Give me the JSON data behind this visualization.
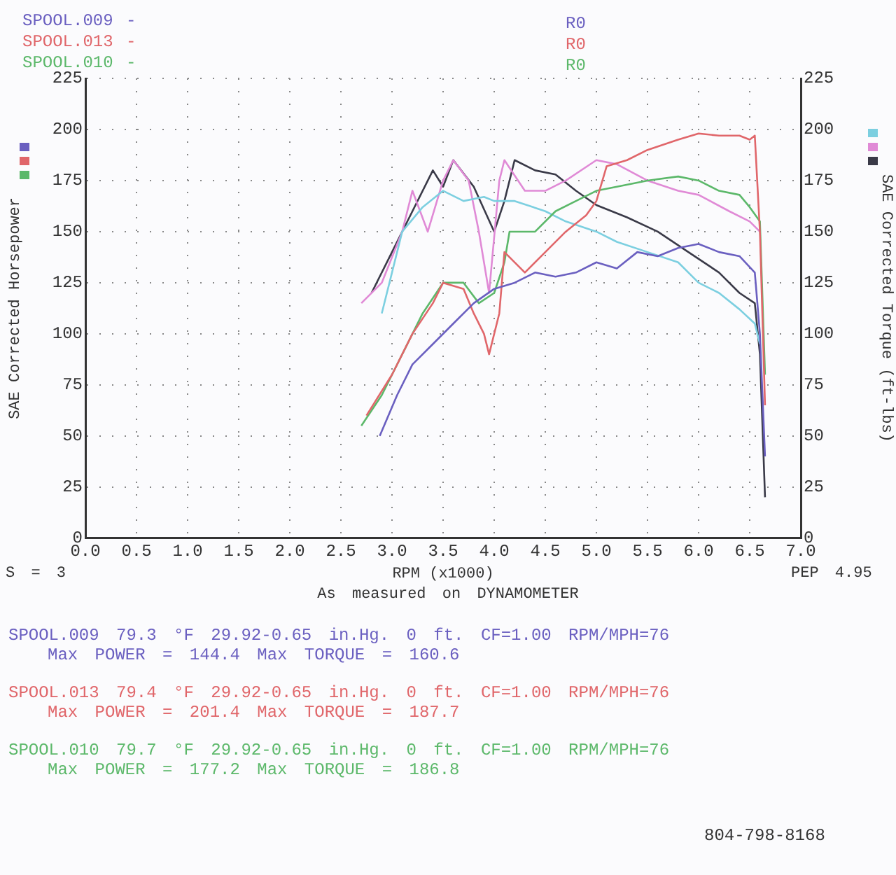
{
  "chart_data": {
    "type": "line",
    "xlabel": "RPM (x1000)",
    "ylabel": "SAE Corrected Horsepower",
    "y2label": "SAE Corrected Torque (ft-lbs)",
    "xlim": [
      0,
      7
    ],
    "xticks": [
      {
        "value": 0,
        "label": "0.0"
      },
      {
        "value": 0.5,
        "label": "0.5"
      },
      {
        "value": 1,
        "label": "1.0"
      },
      {
        "value": 1.5,
        "label": "1.5"
      },
      {
        "value": 2,
        "label": "2.0"
      },
      {
        "value": 2.5,
        "label": "2.5"
      },
      {
        "value": 3,
        "label": "3.0"
      },
      {
        "value": 3.5,
        "label": "3.5"
      },
      {
        "value": 4,
        "label": "4.0"
      },
      {
        "value": 4.5,
        "label": "4.5"
      },
      {
        "value": 5,
        "label": "5.0"
      },
      {
        "value": 5.5,
        "label": "5.5"
      },
      {
        "value": 6,
        "label": "6.0"
      },
      {
        "value": 6.5,
        "label": "6.5"
      },
      {
        "value": 7,
        "label": "7.0"
      }
    ],
    "ylim": [
      0,
      225
    ],
    "yticks": [
      0,
      25,
      50,
      75,
      100,
      125,
      150,
      175,
      200,
      225
    ],
    "y2lim": [
      0,
      225
    ],
    "y2ticks": [
      0,
      25,
      50,
      75,
      100,
      125,
      150,
      175,
      200,
      225
    ],
    "grid": true,
    "marker": "none",
    "line_style": "solid",
    "series": [
      {
        "name": "SPOOL.009 -",
        "color": "#6a5fc0",
        "x": [
          2.88,
          3.05,
          3.2,
          3.4,
          3.6,
          3.8,
          4.0,
          4.2,
          4.4,
          4.6,
          4.8,
          5.0,
          5.2,
          5.4,
          5.6,
          5.8,
          6.0,
          6.2,
          6.4,
          6.55,
          6.6,
          6.65
        ],
        "values": [
          50,
          70,
          85,
          95,
          105,
          115,
          122,
          125,
          130,
          128,
          130,
          135,
          132,
          140,
          138,
          142,
          144,
          140,
          138,
          130,
          100,
          40
        ]
      },
      {
        "name": "SPOOL.013 -",
        "color": "#e0666a",
        "x": [
          2.75,
          3.0,
          3.2,
          3.4,
          3.5,
          3.7,
          3.8,
          3.9,
          3.95,
          4.05,
          4.1,
          4.3,
          4.5,
          4.7,
          4.9,
          5.0,
          5.1,
          5.3,
          5.5,
          5.8,
          6.0,
          6.2,
          6.4,
          6.5,
          6.55,
          6.6,
          6.65
        ],
        "values": [
          60,
          80,
          100,
          115,
          125,
          122,
          110,
          100,
          90,
          110,
          140,
          130,
          140,
          150,
          158,
          165,
          182,
          185,
          190,
          195,
          198,
          197,
          197,
          195,
          197,
          150,
          65
        ]
      },
      {
        "name": "SPOOL.010 -",
        "color": "#5cb86a",
        "x": [
          2.7,
          2.9,
          3.1,
          3.3,
          3.5,
          3.7,
          3.85,
          4.0,
          4.1,
          4.15,
          4.4,
          4.6,
          4.8,
          5.0,
          5.2,
          5.5,
          5.8,
          6.0,
          6.2,
          6.4,
          6.5,
          6.6,
          6.65
        ],
        "values": [
          55,
          70,
          90,
          110,
          125,
          125,
          115,
          120,
          135,
          150,
          150,
          160,
          165,
          170,
          172,
          175,
          177,
          175,
          170,
          168,
          162,
          155,
          80
        ]
      },
      {
        "color": "#7ccfe0",
        "axis": "y2",
        "x": [
          2.9,
          3.0,
          3.1,
          3.3,
          3.5,
          3.7,
          3.9,
          4.0,
          4.2,
          4.5,
          4.7,
          5.0,
          5.2,
          5.5,
          5.8,
          6.0,
          6.2,
          6.4,
          6.55,
          6.6
        ],
        "values": [
          110,
          130,
          150,
          162,
          170,
          165,
          167,
          165,
          165,
          160,
          155,
          150,
          145,
          140,
          135,
          125,
          120,
          112,
          105,
          95
        ]
      },
      {
        "color": "#e08ad6",
        "axis": "y2",
        "x": [
          2.7,
          2.9,
          3.1,
          3.2,
          3.35,
          3.5,
          3.6,
          3.75,
          3.85,
          3.95,
          4.05,
          4.1,
          4.3,
          4.5,
          4.7,
          5.0,
          5.2,
          5.5,
          5.8,
          6.0,
          6.3,
          6.5,
          6.6
        ],
        "values": [
          115,
          125,
          150,
          170,
          150,
          175,
          185,
          175,
          150,
          120,
          175,
          185,
          170,
          170,
          175,
          185,
          183,
          175,
          170,
          168,
          160,
          155,
          150
        ]
      },
      {
        "color": "#3a3a48",
        "axis": "y2",
        "x": [
          2.8,
          3.0,
          3.2,
          3.4,
          3.5,
          3.6,
          3.8,
          4.0,
          4.1,
          4.2,
          4.4,
          4.6,
          4.8,
          5.0,
          5.3,
          5.6,
          5.9,
          6.2,
          6.4,
          6.55,
          6.6,
          6.65
        ],
        "values": [
          120,
          140,
          160,
          180,
          172,
          185,
          172,
          150,
          165,
          185,
          180,
          178,
          170,
          163,
          157,
          150,
          140,
          130,
          120,
          115,
          90,
          20
        ]
      }
    ],
    "annotations": [
      "R0",
      "R0",
      "R0",
      "S = 3",
      "PEP 4.95",
      "As measured on DYNAMOMETER",
      "SPOOL.009 79.3 °F 29.92-0.65 in.Hg. 0 ft. CF=1.00 RPM/MPH=76",
      "Max POWER = 144.4 Max TORQUE = 160.6",
      "SPOOL.013 79.4 °F 29.92-0.65 in.Hg. 0 ft. CF=1.00 RPM/MPH=76",
      "Max POWER = 201.4 Max TORQUE = 187.7",
      "SPOOL.010 79.7 °F 29.92-0.65 in.Hg. 0 ft. CF=1.00 RPM/MPH=76",
      "Max POWER = 177.2 Max TORQUE = 186.8",
      "804-798-8168"
    ]
  }
}
